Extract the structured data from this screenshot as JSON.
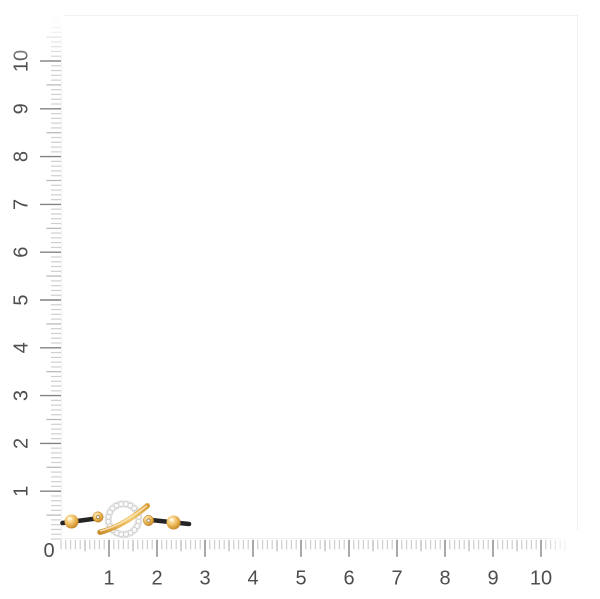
{
  "chart_data": {
    "type": "scatter",
    "title": "",
    "description": "Actual-size measurement guide: a bracelet photographed against a horizontal bottom ruler and a vertical left ruler",
    "x_axis": {
      "position": "bottom",
      "min": 0,
      "max": 10.5,
      "major_tick_step": 1,
      "minor_tick_step": 0.1,
      "tick_labels": [
        "1",
        "2",
        "3",
        "4",
        "5",
        "6",
        "7",
        "8",
        "9",
        "10"
      ],
      "ticks_fade_out_at_end": true
    },
    "y_axis": {
      "position": "left",
      "min": 0,
      "max": 10.9,
      "major_tick_step": 1,
      "minor_tick_step": 0.1,
      "tick_labels": [
        "1",
        "2",
        "3",
        "4",
        "5",
        "6",
        "7",
        "8",
        "9",
        "10"
      ],
      "label_rotation_deg": -90,
      "ticks_fade_out_at_end": true
    },
    "origin_label": "0",
    "grid": false,
    "legend": null,
    "series": [],
    "annotations": [
      {
        "type": "object",
        "name": "bracelet",
        "description": "Black cord bracelet with an open circle charm of pave diamonds crossed by a gold swoosh bar, two small gold connector rings and two gold beads on the cord",
        "x_span_units": [
          0.03,
          2.67
        ],
        "y_center_units": 0.42
      }
    ]
  },
  "colors": {
    "background": "#FFFFFF",
    "plot_border": "#F1F1F1",
    "tick_minor": "#CFCFCF",
    "tick_half": "#B6B6B6",
    "tick_major": "#828282",
    "label_gray": "#4E4E4E",
    "gold": "#E2A94A",
    "gold_light": "#F6D284",
    "gold_dark": "#B67B22",
    "cord_black": "#242424",
    "diamond_white": "#FAFAFA",
    "diamond_outline": "#C4C4C4"
  }
}
